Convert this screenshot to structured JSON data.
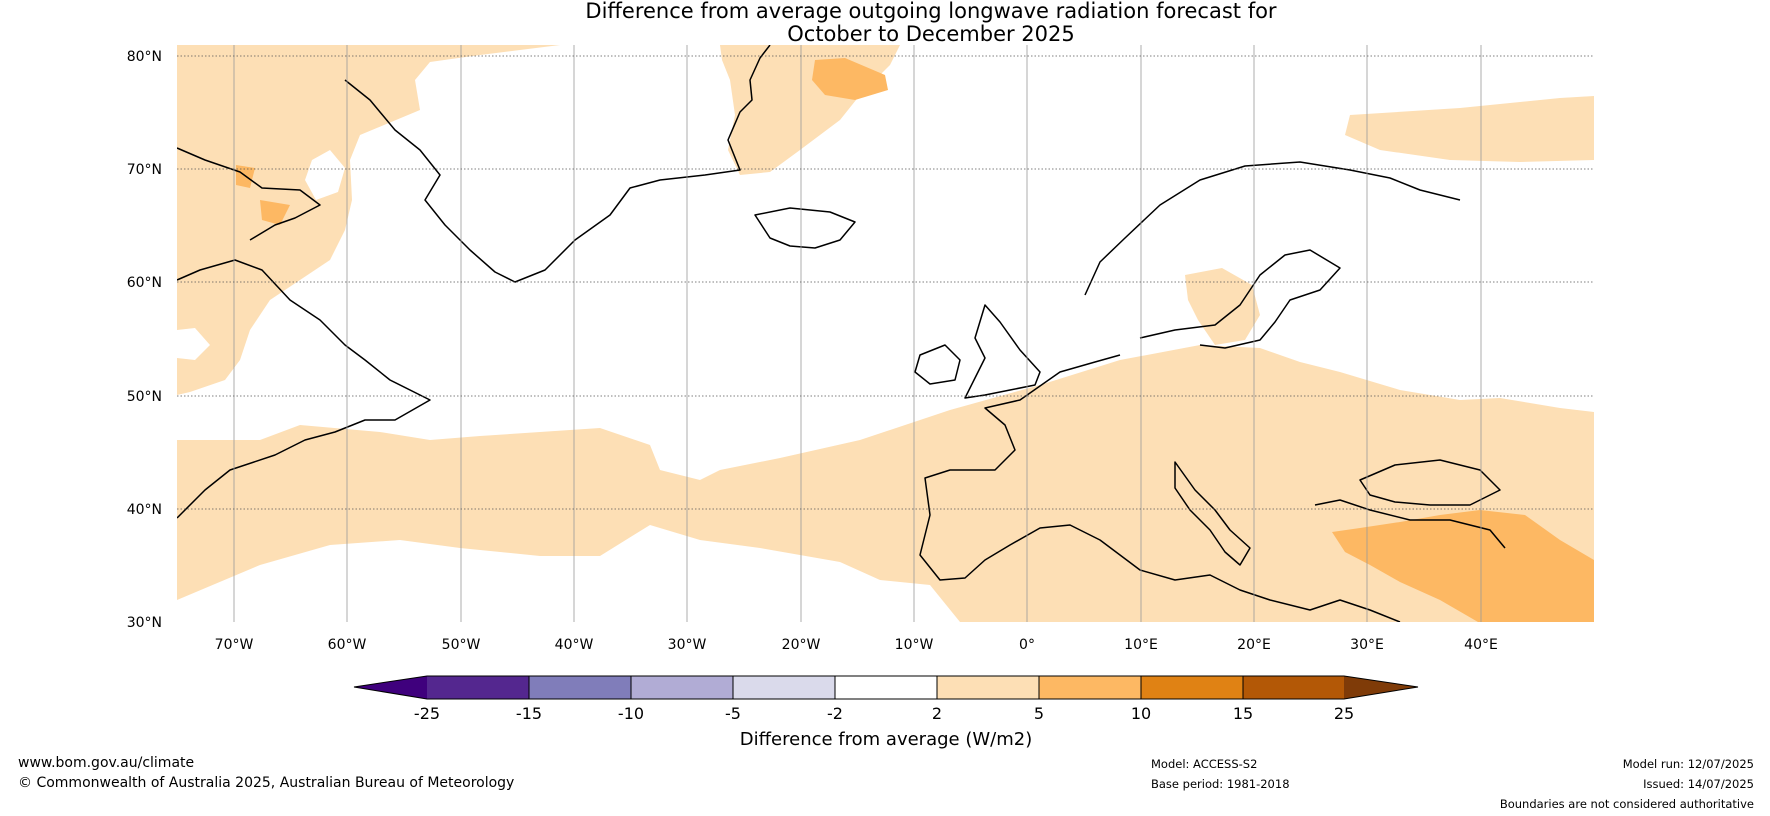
{
  "title": {
    "line1": "Difference from average outgoing longwave radiation forecast for",
    "line2": "October to December 2025"
  },
  "axes": {
    "lat_labels": [
      "80°N",
      "70°N",
      "60°N",
      "50°N",
      "40°N",
      "30°N"
    ],
    "lon_labels": [
      "70°W",
      "60°W",
      "50°W",
      "40°W",
      "30°W",
      "20°W",
      "10°W",
      "0°",
      "10°E",
      "20°E",
      "30°E",
      "40°E"
    ],
    "lat_range": [
      30,
      81
    ],
    "lon_range": [
      -75,
      50
    ]
  },
  "colorbar": {
    "ticks": [
      "-25",
      "-15",
      "-10",
      "-5",
      "-2",
      "2",
      "5",
      "10",
      "15",
      "25"
    ],
    "colors": [
      "#3f007d",
      "#54278f",
      "#807dba",
      "#b1acd5",
      "#dadaeb",
      "#ffffff",
      "#fddfb5",
      "#fdb863",
      "#e08214",
      "#b35806",
      "#7f3b08"
    ],
    "label": "Difference from average (W/m2)"
  },
  "footer": {
    "website": "www.bom.gov.au/climate",
    "copyright": "© Commonwealth of Australia 2025, Australian Bureau of Meteorology",
    "model": "Model: ACCESS-S2",
    "base_period": "Base period: 1981-2018",
    "model_run": "Model run: 12/07/2025",
    "issued": "Issued: 14/07/2025",
    "disclaimer": "Boundaries are not considered authoritative"
  }
}
